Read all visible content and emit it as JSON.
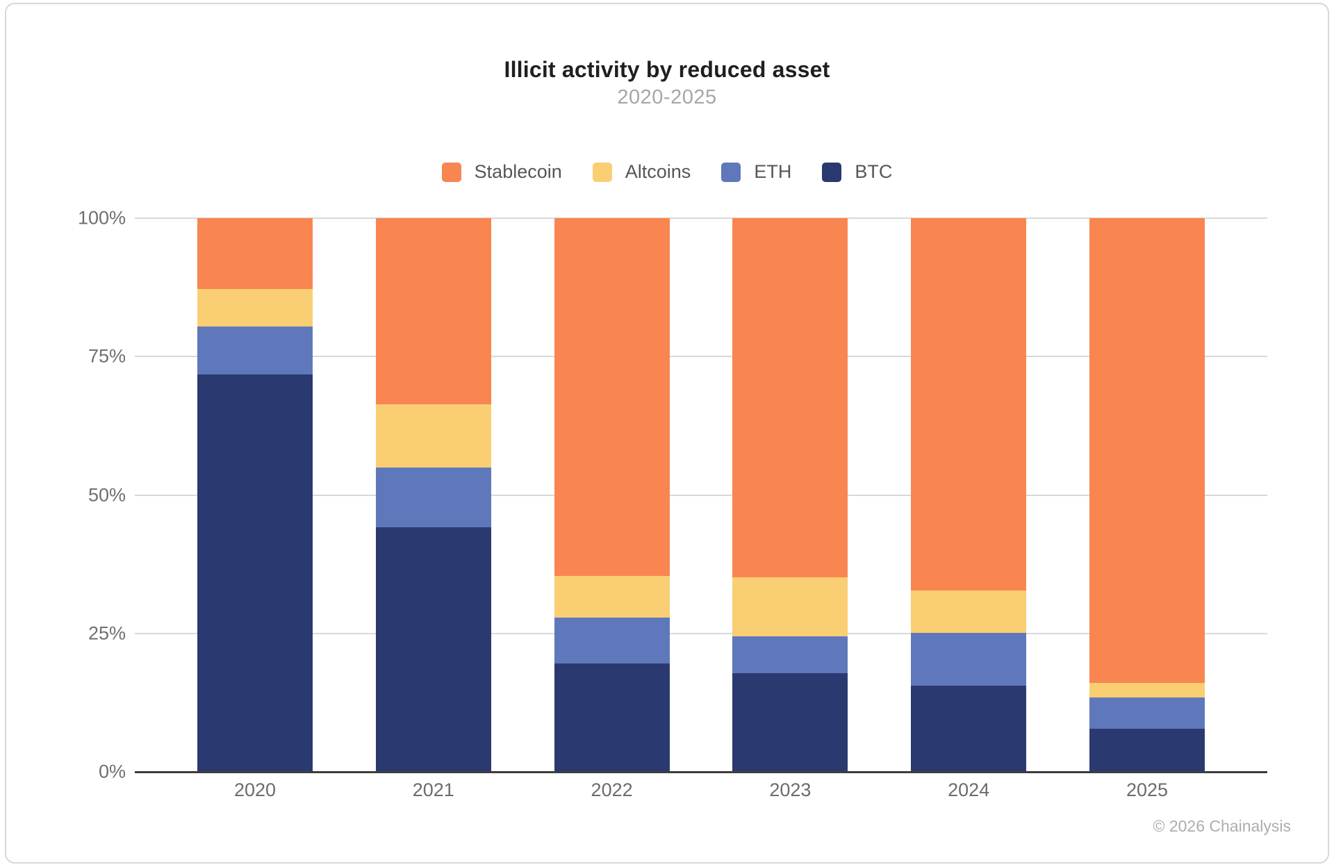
{
  "title": "Illicit activity by reduced asset",
  "subtitle": "2020-2025",
  "attribution": "© 2026 Chainalysis",
  "colors": {
    "stablecoin": "#F98550",
    "altcoins": "#FACE73",
    "eth": "#5F78BB",
    "btc": "#2A3A70",
    "gridline": "#D9D9D9",
    "axis_line": "#3D3D3D",
    "tick_text": "#6F6F6F",
    "title_text": "#1F1F1F",
    "subtitle_text": "#A6A6A6",
    "legend_text": "#565656"
  },
  "chart_data": {
    "type": "bar",
    "stacked": true,
    "title": "Illicit activity by reduced asset",
    "subtitle": "2020-2025",
    "categories": [
      "2020",
      "2021",
      "2022",
      "2023",
      "2024",
      "2025"
    ],
    "series": [
      {
        "name": "Stablecoin",
        "color": "#F98550",
        "values": [
          12.8,
          33.6,
          64.6,
          64.9,
          67.3,
          83.9
        ]
      },
      {
        "name": "Altcoins",
        "color": "#FACE73",
        "values": [
          6.8,
          11.4,
          7.5,
          10.6,
          7.6,
          2.7
        ]
      },
      {
        "name": "ETH",
        "color": "#5F78BB",
        "values": [
          8.6,
          10.8,
          8.3,
          6.7,
          9.5,
          5.6
        ]
      },
      {
        "name": "BTC",
        "color": "#2A3A70",
        "values": [
          71.8,
          44.2,
          19.6,
          17.8,
          15.6,
          7.8
        ]
      }
    ],
    "stack_order_bottom_to_top": [
      "BTC",
      "ETH",
      "Altcoins",
      "Stablecoin"
    ],
    "xlabel": "",
    "ylabel": "",
    "ylim": [
      0,
      100
    ],
    "yticks": [
      {
        "value": 0,
        "label": "0%"
      },
      {
        "value": 25,
        "label": "25%"
      },
      {
        "value": 50,
        "label": "50%"
      },
      {
        "value": 75,
        "label": "75%"
      },
      {
        "value": 100,
        "label": "100%"
      }
    ],
    "grid": true,
    "legend_position": "top"
  }
}
